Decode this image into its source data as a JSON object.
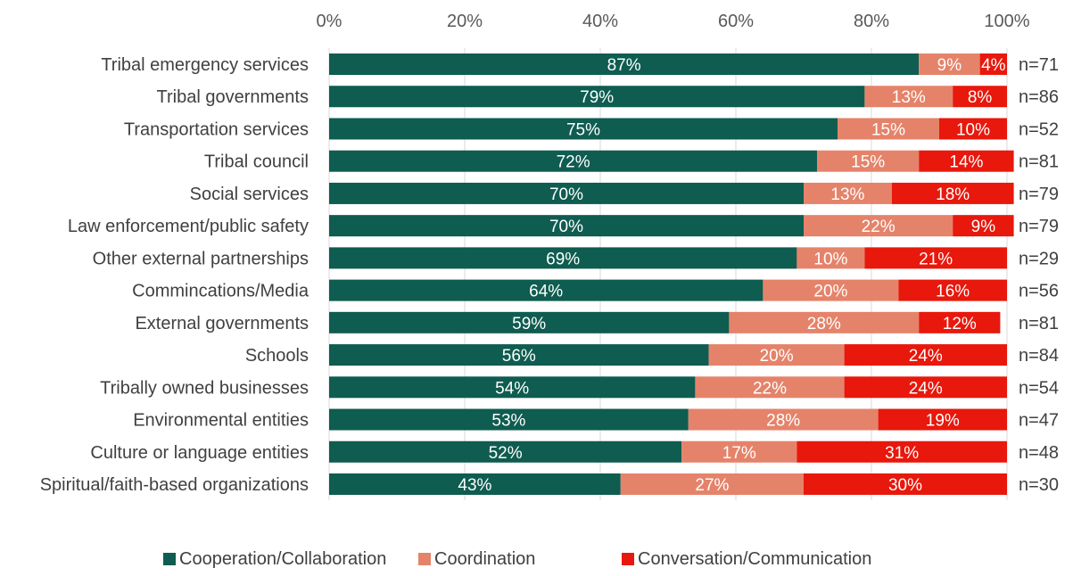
{
  "chart_data": {
    "type": "bar",
    "orientation": "horizontal",
    "stacked": true,
    "title": "",
    "xlabel": "",
    "ylabel": "",
    "xlim": [
      0,
      100
    ],
    "x_ticks": [
      "0%",
      "20%",
      "40%",
      "60%",
      "80%",
      "100%"
    ],
    "x_axis_position": "top",
    "grid": true,
    "legend_position": "bottom",
    "categories": [
      "Tribal emergency services",
      "Tribal governments",
      "Transportation services",
      "Tribal council",
      "Social services",
      "Law enforcement/public safety",
      "Other external partnerships",
      "Commincations/Media",
      "External governments",
      "Schools",
      "Tribally owned businesses",
      "Environmental entities",
      "Culture or language entities",
      "Spiritual/faith-based organizations"
    ],
    "series": [
      {
        "name": "Cooperation/Collaboration",
        "color": "#0f5c50",
        "values": [
          87,
          79,
          75,
          72,
          70,
          70,
          69,
          64,
          59,
          56,
          54,
          53,
          52,
          43
        ],
        "labels": [
          "87%",
          "79%",
          "75%",
          "72%",
          "70%",
          "70%",
          "69%",
          "64%",
          "59%",
          "56%",
          "54%",
          "53%",
          "52%",
          "43%"
        ]
      },
      {
        "name": "Coordination",
        "color": "#e5836a",
        "values": [
          9,
          13,
          15,
          15,
          13,
          22,
          10,
          20,
          28,
          20,
          22,
          28,
          17,
          27
        ],
        "labels": [
          "9%",
          "13%",
          "15%",
          "15%",
          "13%",
          "22%",
          "10%",
          "20%",
          "28%",
          "20%",
          "22%",
          "28%",
          "17%",
          "27%"
        ]
      },
      {
        "name": "Conversation/Communication",
        "color": "#e8180c",
        "values": [
          4,
          8,
          10,
          14,
          18,
          9,
          21,
          16,
          12,
          24,
          24,
          19,
          31,
          30
        ],
        "labels": [
          "4%",
          "8%",
          "10%",
          "14%",
          "18%",
          "9%",
          "21%",
          "16%",
          "12%",
          "24%",
          "24%",
          "19%",
          "31%",
          "30%"
        ]
      }
    ],
    "n_labels": [
      "n=71",
      "n=86",
      "n=52",
      "n=81",
      "n=79",
      "n=79",
      "n=29",
      "n=56",
      "n=81",
      "n=84",
      "n=54",
      "n=47",
      "n=48",
      "n=30"
    ]
  }
}
